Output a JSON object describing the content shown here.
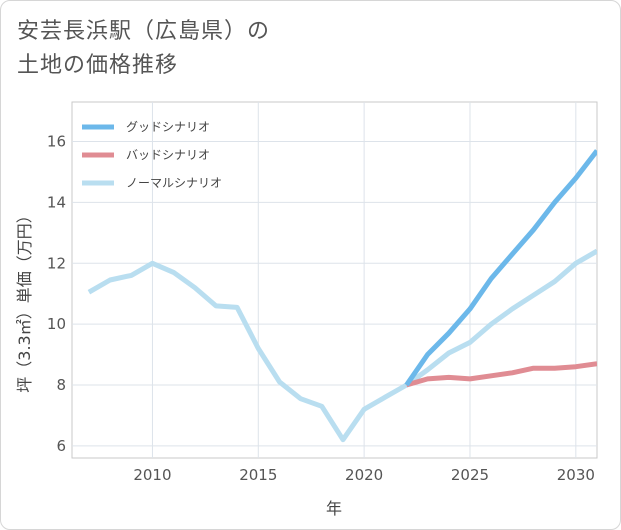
{
  "title_lines": [
    "安芸長浜駅（広島県）の",
    "土地の価格推移"
  ],
  "chart_data": {
    "type": "line",
    "title": "安芸長浜駅（広島県）の土地の価格推移",
    "xlabel": "年",
    "ylabel": "坪（3.3㎡）単価（万円）",
    "xlim": [
      2006.2,
      2031
    ],
    "ylim": [
      5.6,
      17.3
    ],
    "xticks": [
      2010,
      2015,
      2020,
      2025,
      2030
    ],
    "yticks": [
      6,
      8,
      10,
      12,
      14,
      16
    ],
    "grid": true,
    "legend_position": "top-left",
    "series": [
      {
        "name": "グッドシナリオ",
        "color": "#6cb8ea",
        "x": [
          2022,
          2023,
          2024,
          2025,
          2026,
          2027,
          2028,
          2029,
          2030,
          2031
        ],
        "y": [
          8.0,
          9.0,
          9.7,
          10.5,
          11.5,
          12.3,
          13.1,
          14.0,
          14.8,
          15.7
        ]
      },
      {
        "name": "バッドシナリオ",
        "color": "#e08c93",
        "x": [
          2022,
          2023,
          2024,
          2025,
          2026,
          2027,
          2028,
          2029,
          2030,
          2031
        ],
        "y": [
          8.0,
          8.2,
          8.25,
          8.2,
          8.3,
          8.4,
          8.55,
          8.55,
          8.6,
          8.7
        ]
      },
      {
        "name": "ノーマルシナリオ",
        "color": "#b9def0",
        "x": [
          2007,
          2008,
          2009,
          2010,
          2011,
          2012,
          2013,
          2014,
          2015,
          2016,
          2017,
          2018,
          2019,
          2020,
          2021,
          2022,
          2023,
          2024,
          2025,
          2026,
          2027,
          2028,
          2029,
          2030,
          2031
        ],
        "y": [
          11.05,
          11.45,
          11.6,
          12.0,
          11.7,
          11.2,
          10.6,
          10.55,
          9.2,
          8.1,
          7.55,
          7.3,
          6.2,
          7.2,
          7.6,
          8.0,
          8.5,
          9.05,
          9.4,
          10.0,
          10.5,
          10.95,
          11.4,
          12.0,
          12.4
        ]
      }
    ]
  }
}
